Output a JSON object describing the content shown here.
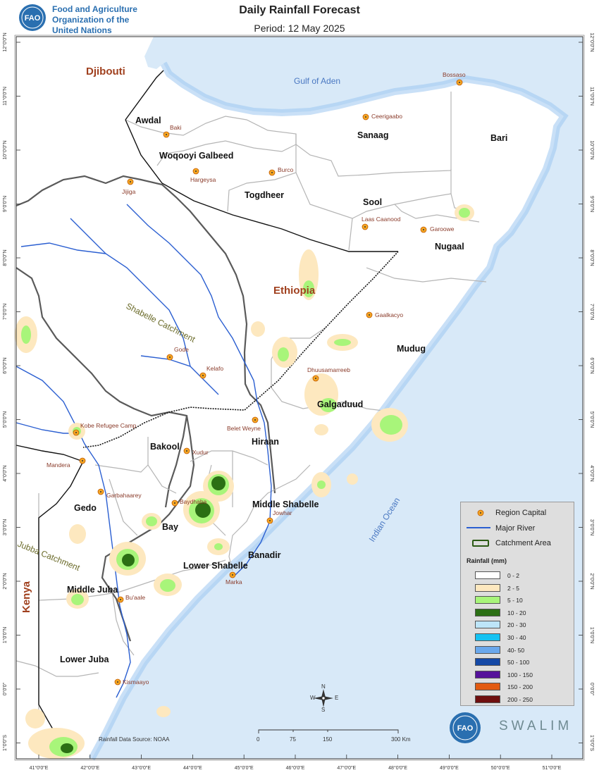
{
  "header": {
    "org_line1": "Food and Agriculture",
    "org_line2": "Organization of the",
    "org_line3": "United Nations",
    "logo_text": "FAO",
    "title": "Daily Rainfall Forecast",
    "subtitle": "Period: 12 May 2025"
  },
  "map": {
    "countries": [
      {
        "id": "djibouti",
        "label": "Djibouti"
      },
      {
        "id": "ethiopia",
        "label": "Ethiopia"
      },
      {
        "id": "kenya",
        "label": "Kenya"
      }
    ],
    "water_bodies": [
      {
        "id": "gulf-of-aden",
        "label": "Gulf of Aden"
      },
      {
        "id": "indian-ocean",
        "label": "Indian Ocean"
      }
    ],
    "catchments": [
      {
        "id": "shabelle",
        "label": "Shabelle Catchment"
      },
      {
        "id": "jubba",
        "label": "Jubba Catchment"
      }
    ],
    "regions": [
      {
        "id": "awdal",
        "label": "Awdal"
      },
      {
        "id": "woqooyi-galbeed",
        "label": "Woqooyi Galbeed"
      },
      {
        "id": "togdheer",
        "label": "Togdheer"
      },
      {
        "id": "sanaag",
        "label": "Sanaag"
      },
      {
        "id": "bari",
        "label": "Bari"
      },
      {
        "id": "sool",
        "label": "Sool"
      },
      {
        "id": "nugaal",
        "label": "Nugaal"
      },
      {
        "id": "mudug",
        "label": "Mudug"
      },
      {
        "id": "galgaduud",
        "label": "Galgaduud"
      },
      {
        "id": "bakool",
        "label": "Bakool"
      },
      {
        "id": "hiraan",
        "label": "Hiraan"
      },
      {
        "id": "gedo",
        "label": "Gedo"
      },
      {
        "id": "bay",
        "label": "Bay"
      },
      {
        "id": "middle-shabelle",
        "label": "Middle Shabelle"
      },
      {
        "id": "banadir",
        "label": "Banadir"
      },
      {
        "id": "lower-shabelle",
        "label": "Lower Shabelle"
      },
      {
        "id": "middle-juba",
        "label": "Middle Juba"
      },
      {
        "id": "lower-juba",
        "label": "Lower Juba"
      }
    ],
    "cities": [
      {
        "id": "bossaso",
        "label": "Bossaso"
      },
      {
        "id": "ceerigaabo",
        "label": "Ceerigaabo"
      },
      {
        "id": "baki",
        "label": "Baki"
      },
      {
        "id": "burco",
        "label": "Burco"
      },
      {
        "id": "hargeysa",
        "label": "Hargeysa"
      },
      {
        "id": "jijiga",
        "label": "Jijiga"
      },
      {
        "id": "laas-caanood",
        "label": "Laas Caanood"
      },
      {
        "id": "garoowe",
        "label": "Garoowe"
      },
      {
        "id": "gaalkacyo",
        "label": "Gaalkacyo"
      },
      {
        "id": "gode",
        "label": "Gode"
      },
      {
        "id": "kelafo",
        "label": "Kelafo"
      },
      {
        "id": "dhuusamarreeb",
        "label": "Dhuusamarreeb"
      },
      {
        "id": "kobe",
        "label": "Kobe Refugee Camp"
      },
      {
        "id": "belet-weyne",
        "label": "Belet Weyne"
      },
      {
        "id": "mandera",
        "label": "Mandera"
      },
      {
        "id": "xudur",
        "label": "Xudur"
      },
      {
        "id": "garbahaarey",
        "label": "Garbahaarey"
      },
      {
        "id": "baydhaba",
        "label": "Baydhaba"
      },
      {
        "id": "jowhar",
        "label": "Jowhar"
      },
      {
        "id": "marka",
        "label": "Marka"
      },
      {
        "id": "buaale",
        "label": "Bu'aale"
      },
      {
        "id": "kismaayo",
        "label": "Kismaayo"
      }
    ],
    "lat_ticks": [
      "12°0'0\"N",
      "11°0'0\"N",
      "10°0'0\"N",
      "9°0'0\"N",
      "8°0'0\"N",
      "7°0'0\"N",
      "6°0'0\"N",
      "5°0'0\"N",
      "4°0'0\"N",
      "3°0'0\"N",
      "2°0'0\"N",
      "1°0'0\"N",
      "0°0'0\"",
      "1°0'0\"S"
    ],
    "lon_ticks": [
      "41°0'0\"E",
      "42°0'0\"E",
      "43°0'0\"E",
      "44°0'0\"E",
      "45°0'0\"E",
      "46°0'0\"E",
      "47°0'0\"E",
      "48°0'0\"E",
      "49°0'0\"E",
      "50°0'0\"E",
      "51°0'0\"E"
    ],
    "data_source": "Rainfall Data Source: NOAA",
    "scale_labels": [
      "0",
      "75",
      "150",
      "300 Km"
    ],
    "north_arrow": {
      "n": "N",
      "s": "S",
      "e": "E",
      "w": "W"
    },
    "colors": {
      "land": "#ffffff",
      "sea": "#cfe4f7",
      "coast": "#7fb0e8",
      "river": "#1f5fd0",
      "catchment": "#555555",
      "boundary": "#aaaaaa"
    }
  },
  "legend": {
    "capital_label": "Region Capital",
    "river_label": "Major River",
    "catchment_label": "Catchment Area",
    "rainfall_title": "Rainfall (mm)",
    "classes": [
      {
        "label": "0 - 2",
        "color": "#ffffff"
      },
      {
        "label": "2 - 5",
        "color": "#fde8bf"
      },
      {
        "label": "5 - 10",
        "color": "#a8f57a"
      },
      {
        "label": "10 - 20",
        "color": "#2b6f14"
      },
      {
        "label": "20 - 30",
        "color": "#bde5f8"
      },
      {
        "label": "30 - 40",
        "color": "#14c2f2"
      },
      {
        "label": "40- 50",
        "color": "#6aa8ec"
      },
      {
        "label": "50 - 100",
        "color": "#1549a6"
      },
      {
        "label": "100 - 150",
        "color": "#55129a"
      },
      {
        "label": "150 - 200",
        "color": "#e25a10"
      },
      {
        "label": "200 - 250",
        "color": "#6f0f0f"
      }
    ]
  },
  "footer": {
    "swalim": "SWALIM",
    "fao_logo": "FAO"
  }
}
